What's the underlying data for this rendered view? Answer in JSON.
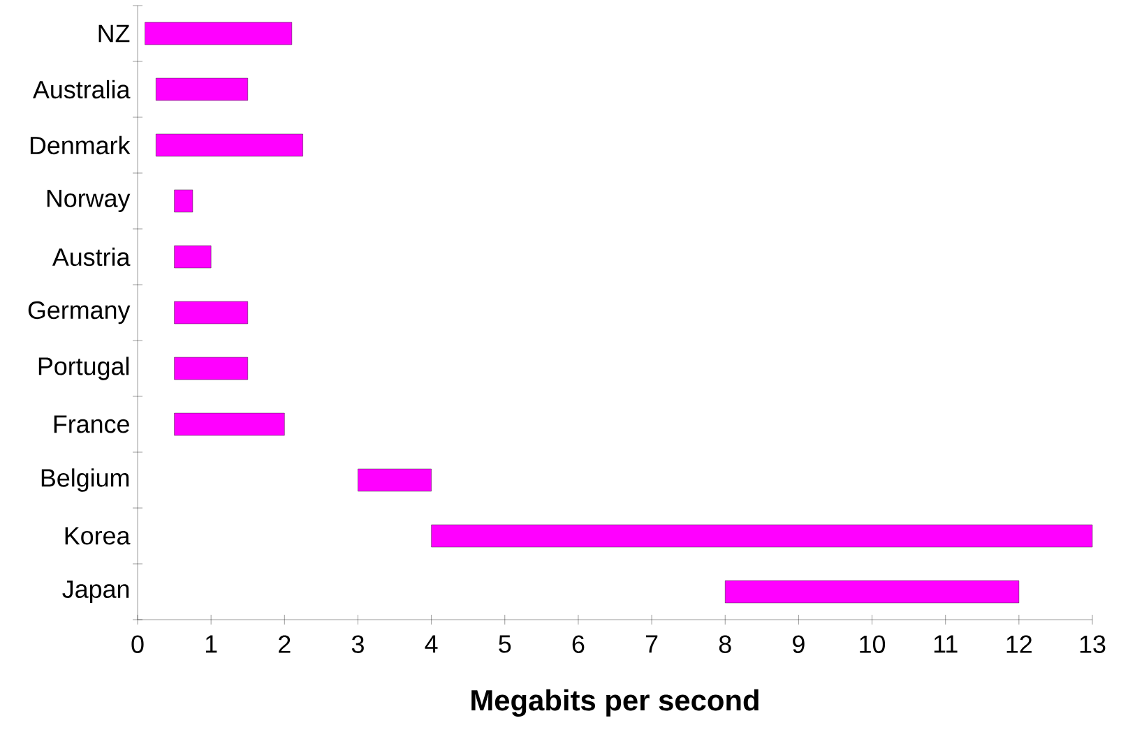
{
  "chart_data": {
    "type": "bar",
    "orientation": "horizontal",
    "xlabel": "Megabits per second",
    "categories": [
      "NZ",
      "Australia",
      "Denmark",
      "Norway",
      "Austria",
      "Germany",
      "Portugal",
      "France",
      "Belgium",
      "Korea",
      "Japan"
    ],
    "base": [
      0.1,
      0.25,
      0.25,
      0.5,
      0.5,
      0.5,
      0.5,
      0.5,
      3,
      4,
      8
    ],
    "values": [
      2,
      1.25,
      2,
      0.25,
      0.5,
      1,
      1,
      1.5,
      1,
      9,
      4
    ],
    "color": "#ff00ff",
    "xlim": [
      0,
      13
    ],
    "xticks": [
      0,
      1,
      2,
      3,
      4,
      5,
      6,
      7,
      8,
      9,
      10,
      11,
      12,
      13
    ],
    "grid": false
  }
}
